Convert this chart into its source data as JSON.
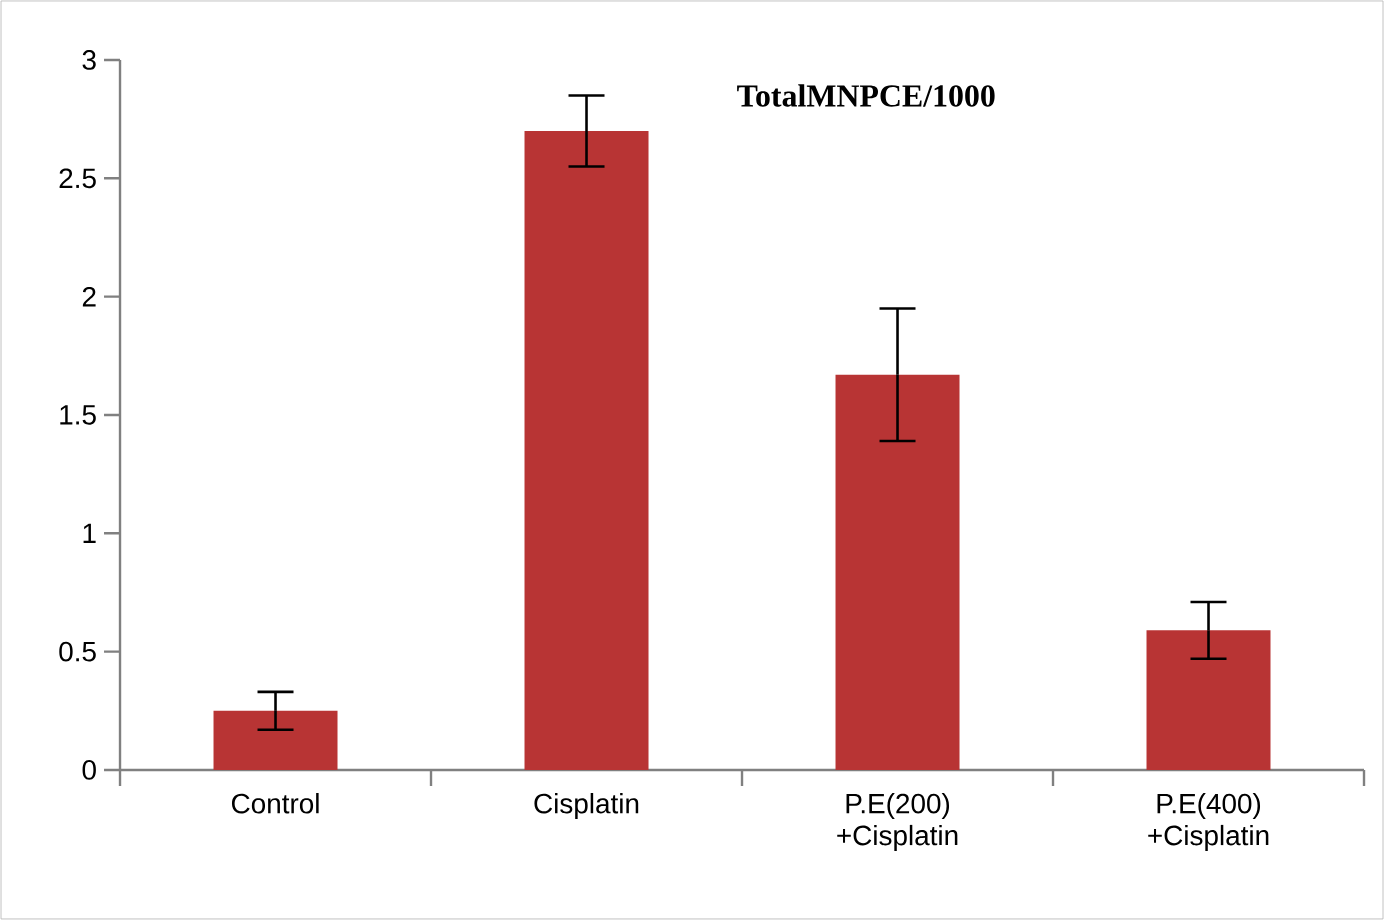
{
  "chart_data": {
    "type": "bar",
    "title": "TotalMNPCE/1000",
    "categories": [
      "Control",
      "Cisplatin",
      "P.E(200) +Cisplatin",
      "P.E(400) +Cisplatin"
    ],
    "values": [
      0.25,
      2.7,
      1.67,
      0.59
    ],
    "errors": [
      0.08,
      0.15,
      0.28,
      0.12
    ],
    "color": "#b83434",
    "ylim": [
      0,
      3
    ],
    "yticks": [
      0,
      0.5,
      1,
      1.5,
      2,
      2.5,
      3
    ],
    "grid": false
  }
}
